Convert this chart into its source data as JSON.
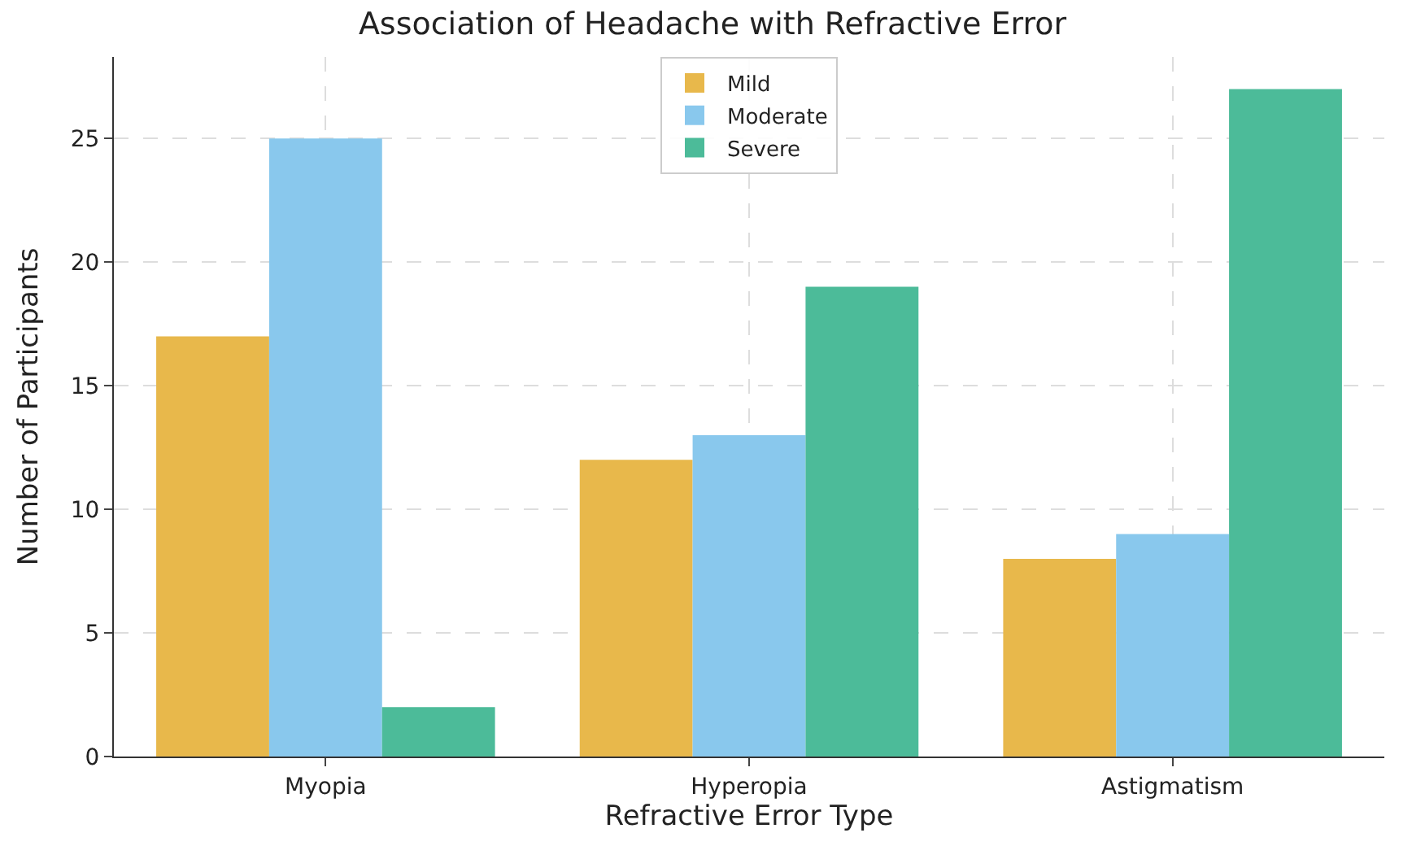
{
  "chart_data": {
    "type": "bar",
    "title": "Association of Headache with Refractive Error",
    "xlabel": "Refractive Error Type",
    "ylabel": "Number of Participants",
    "categories": [
      "Myopia",
      "Hyperopia",
      "Astigmatism"
    ],
    "series": [
      {
        "name": "Mild",
        "color": "#e8b84b",
        "values": [
          17,
          12,
          8
        ]
      },
      {
        "name": "Moderate",
        "color": "#89c8ed",
        "values": [
          25,
          13,
          9
        ]
      },
      {
        "name": "Severe",
        "color": "#4cbb99",
        "values": [
          2,
          19,
          27
        ]
      }
    ],
    "ylim": [
      0,
      28.3
    ],
    "yticks": [
      0,
      5,
      10,
      15,
      20,
      25
    ],
    "grid": true,
    "legend": "top"
  }
}
